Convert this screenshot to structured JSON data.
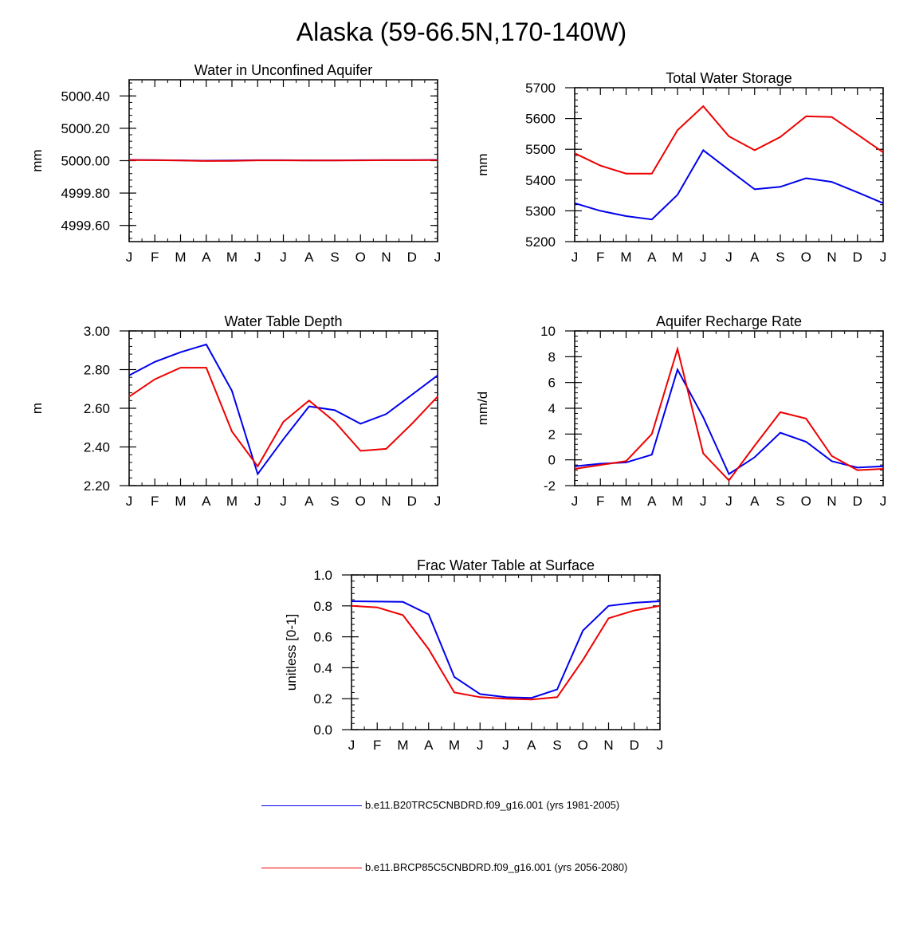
{
  "title": "Alaska (59-66.5N,170-140W)",
  "colors": {
    "series_1": "#0000ee",
    "series_2": "#ee0000"
  },
  "legend": [
    {
      "label": "b.e11.B20TRC5CNBDRD.f09_g16.001 (yrs 1981-2005)",
      "color": "#0000ee"
    },
    {
      "label": "b.e11.BRCP85C5CNBDRD.f09_g16.001 (yrs 2056-2080)",
      "color": "#ee0000"
    }
  ],
  "chart_data": [
    {
      "type": "line",
      "title": "Water in Unconfined Aquifer",
      "ylabel": "mm",
      "categories": [
        "J",
        "F",
        "M",
        "A",
        "M",
        "J",
        "J",
        "A",
        "S",
        "O",
        "N",
        "D",
        "J"
      ],
      "ylim": [
        4999.5,
        5000.5
      ],
      "yticks": [
        4999.6,
        4999.8,
        5000.0,
        5000.2,
        5000.4
      ],
      "ytick_labels": [
        "4999.60",
        "4999.80",
        "5000.00",
        "5000.20",
        "5000.40"
      ],
      "series": [
        {
          "name": "b.e11.B20TRC5CNBDRD.f09_g16.001 (yrs 1981-2005)",
          "color": "#0000ee",
          "values": [
            5000.005,
            5000.004,
            5000.002,
            5000.0,
            5000.001,
            5000.003,
            5000.003,
            5000.002,
            5000.002,
            5000.003,
            5000.004,
            5000.004,
            5000.005
          ]
        },
        {
          "name": "b.e11.BRCP85C5CNBDRD.f09_g16.001 (yrs 2056-2080)",
          "color": "#ee0000",
          "values": [
            5000.004,
            5000.003,
            5000.001,
            4999.998,
            4999.999,
            5000.002,
            5000.002,
            5000.001,
            5000.001,
            5000.002,
            5000.003,
            5000.003,
            5000.004
          ]
        }
      ]
    },
    {
      "type": "line",
      "title": "Total Water Storage",
      "ylabel": "mm",
      "categories": [
        "J",
        "F",
        "M",
        "A",
        "M",
        "J",
        "J",
        "A",
        "S",
        "O",
        "N",
        "D",
        "J"
      ],
      "ylim": [
        5200,
        5700
      ],
      "yticks": [
        5200,
        5300,
        5400,
        5500,
        5600,
        5700
      ],
      "ytick_labels": [
        "5200",
        "5300",
        "5400",
        "5500",
        "5600",
        "5700"
      ],
      "series": [
        {
          "name": "b.e11.B20TRC5CNBDRD.f09_g16.001 (yrs 1981-2005)",
          "color": "#0000ee",
          "values": [
            5325,
            5300,
            5283,
            5272,
            5352,
            5497,
            5433,
            5370,
            5378,
            5406,
            5394,
            5360,
            5325
          ]
        },
        {
          "name": "b.e11.BRCP85C5CNBDRD.f09_g16.001 (yrs 2056-2080)",
          "color": "#ee0000",
          "values": [
            5487,
            5447,
            5421,
            5421,
            5562,
            5640,
            5542,
            5497,
            5540,
            5607,
            5605,
            5548,
            5490
          ]
        }
      ]
    },
    {
      "type": "line",
      "title": "Water Table Depth",
      "ylabel": "m",
      "categories": [
        "J",
        "F",
        "M",
        "A",
        "M",
        "J",
        "J",
        "A",
        "S",
        "O",
        "N",
        "D",
        "J"
      ],
      "ylim": [
        2.2,
        3.0
      ],
      "yticks": [
        2.2,
        2.4,
        2.6,
        2.8,
        3.0
      ],
      "ytick_labels": [
        "2.20",
        "2.40",
        "2.60",
        "2.80",
        "3.00"
      ],
      "series": [
        {
          "name": "b.e11.B20TRC5CNBDRD.f09_g16.001 (yrs 1981-2005)",
          "color": "#0000ee",
          "values": [
            2.77,
            2.84,
            2.89,
            2.93,
            2.69,
            2.26,
            2.44,
            2.61,
            2.59,
            2.52,
            2.57,
            2.67,
            2.77
          ]
        },
        {
          "name": "b.e11.BRCP85C5CNBDRD.f09_g16.001 (yrs 2056-2080)",
          "color": "#ee0000",
          "values": [
            2.66,
            2.75,
            2.81,
            2.81,
            2.48,
            2.3,
            2.53,
            2.64,
            2.53,
            2.38,
            2.39,
            2.52,
            2.66
          ]
        }
      ]
    },
    {
      "type": "line",
      "title": "Aquifer Recharge Rate",
      "ylabel": "mm/d",
      "categories": [
        "J",
        "F",
        "M",
        "A",
        "M",
        "J",
        "J",
        "A",
        "S",
        "O",
        "N",
        "D",
        "J"
      ],
      "ylim": [
        -2,
        10
      ],
      "yticks": [
        -2,
        0,
        2,
        4,
        6,
        8,
        10
      ],
      "ytick_labels": [
        "-2",
        "0",
        "2",
        "4",
        "6",
        "8",
        "10"
      ],
      "series": [
        {
          "name": "b.e11.B20TRC5CNBDRD.f09_g16.001 (yrs 1981-2005)",
          "color": "#0000ee",
          "values": [
            -0.5,
            -0.3,
            -0.2,
            0.4,
            7.0,
            3.3,
            -1.1,
            0.2,
            2.1,
            1.4,
            -0.1,
            -0.6,
            -0.5
          ]
        },
        {
          "name": "b.e11.BRCP85C5CNBDRD.f09_g16.001 (yrs 2056-2080)",
          "color": "#ee0000",
          "values": [
            -0.7,
            -0.4,
            -0.1,
            2.0,
            8.6,
            0.5,
            -1.6,
            1.1,
            3.7,
            3.2,
            0.3,
            -0.8,
            -0.7
          ]
        }
      ]
    },
    {
      "type": "line",
      "title": "Frac Water Table at Surface",
      "ylabel": "unitless [0-1]",
      "categories": [
        "J",
        "F",
        "M",
        "A",
        "M",
        "J",
        "J",
        "A",
        "S",
        "O",
        "N",
        "D",
        "J"
      ],
      "ylim": [
        0.0,
        1.0
      ],
      "yticks": [
        0.0,
        0.2,
        0.4,
        0.6,
        0.8,
        1.0
      ],
      "ytick_labels": [
        "0.0",
        "0.2",
        "0.4",
        "0.6",
        "0.8",
        "1.0"
      ],
      "series": [
        {
          "name": "b.e11.B20TRC5CNBDRD.f09_g16.001 (yrs 1981-2005)",
          "color": "#0000ee",
          "values": [
            0.83,
            0.828,
            0.826,
            0.745,
            0.34,
            0.23,
            0.21,
            0.205,
            0.26,
            0.64,
            0.8,
            0.82,
            0.83
          ]
        },
        {
          "name": "b.e11.BRCP85C5CNBDRD.f09_g16.001 (yrs 2056-2080)",
          "color": "#ee0000",
          "values": [
            0.8,
            0.79,
            0.74,
            0.52,
            0.24,
            0.21,
            0.2,
            0.195,
            0.21,
            0.45,
            0.72,
            0.77,
            0.8
          ]
        }
      ]
    }
  ]
}
